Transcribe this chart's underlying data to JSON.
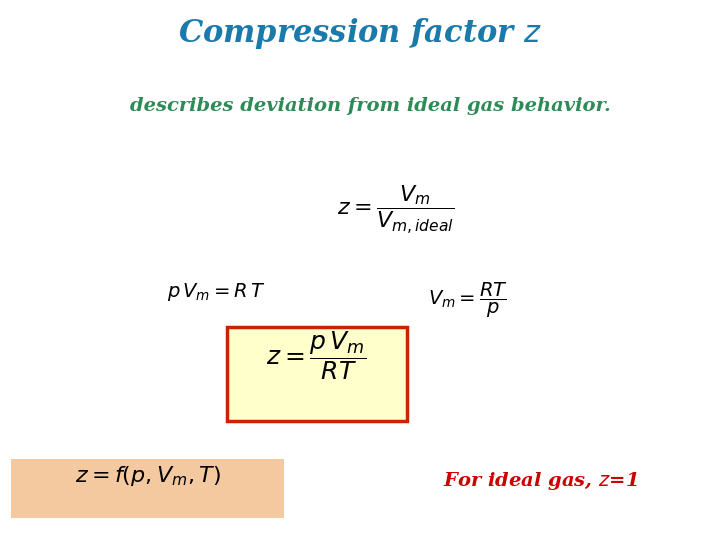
{
  "title": "Compression factor $z$",
  "title_color": "#1a7aab",
  "subtitle": "describes deviation from ideal gas behavior.",
  "subtitle_color": "#2e8b57",
  "eq1_color": "black",
  "eq2a_color": "black",
  "eq2b_color": "black",
  "eq3_color": "black",
  "eq3_box_facecolor": "#ffffcc",
  "eq3_box_edgecolor": "#cc2200",
  "eq4_color": "black",
  "eq4_box_facecolor": "#f5c9a0",
  "footnote": "For ideal gas, $z$=1",
  "footnote_color": "#cc0000",
  "bg_color": "white",
  "title_fontsize": 22,
  "subtitle_fontsize": 14,
  "eq1_fontsize": 16,
  "eq2_fontsize": 14,
  "eq3_fontsize": 18,
  "eq4_fontsize": 16,
  "footnote_fontsize": 14
}
